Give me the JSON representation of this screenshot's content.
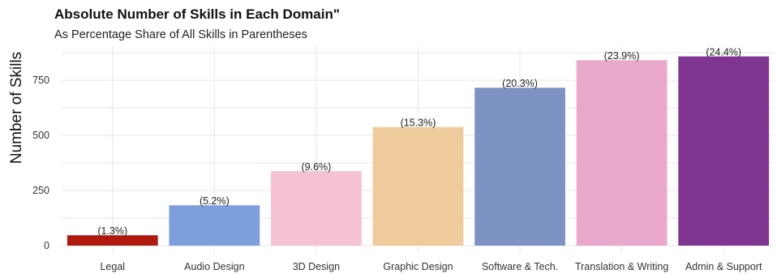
{
  "title": "Absolute Number of Skills in Each Domain\"",
  "subtitle": "As Percentage Share of All Skills in Parentheses",
  "chart_data": {
    "type": "bar",
    "title": "Absolute Number of Skills in Each Domain\"",
    "subtitle": "As Percentage Share of All Skills in Parentheses",
    "xlabel": "",
    "ylabel": "Number of Skills",
    "categories": [
      "Legal",
      "Audio Design",
      "3D Design",
      "Graphic Design",
      "Software & Tech.",
      "Translation & Writing",
      "Admin & Support"
    ],
    "values": [
      47,
      183,
      338,
      538,
      716,
      841,
      858
    ],
    "data_labels": [
      "(1.3%)",
      "(5.2%)",
      "(9.6%)",
      "(15.3%)",
      "(20.3%)",
      "(23.9%)",
      "(24.4%)"
    ],
    "colors": [
      "#b0190e",
      "#7e9fde",
      "#f5c2d3",
      "#efcb9b",
      "#7d93c4",
      "#e9a8cc",
      "#7f3591"
    ],
    "yticks": [
      0,
      250,
      500,
      750
    ],
    "ylim": [
      0,
      900
    ],
    "grid": true,
    "legend": "none"
  }
}
